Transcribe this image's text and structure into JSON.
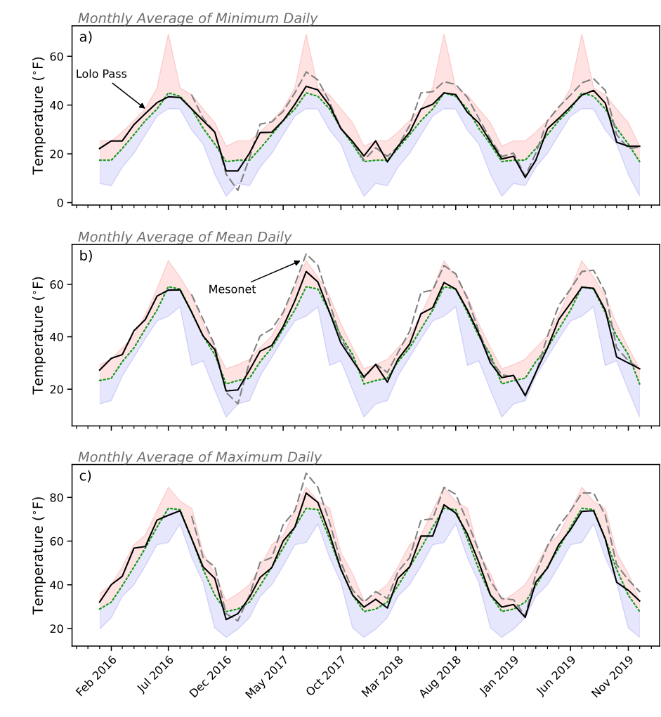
{
  "chart_data": [
    {
      "type": "line",
      "title": "Monthly Average of Minimum Daily",
      "ylabel": "Temperature ($^{∘}$F)",
      "annotations": [
        "a)",
        {
          "text": "Lolo Pass",
          "x": "2016-05",
          "y": 38.5
        }
      ],
      "x": [
        "2016-01",
        "2016-02",
        "2016-03",
        "2016-04",
        "2016-05",
        "2016-06",
        "2016-07",
        "2016-08",
        "2016-09",
        "2016-10",
        "2016-11",
        "2016-12",
        "2017-01",
        "2017-02",
        "2017-03",
        "2017-04",
        "2017-05",
        "2017-06",
        "2017-07",
        "2017-08",
        "2017-09",
        "2017-10",
        "2017-11",
        "2017-12",
        "2018-01",
        "2018-02",
        "2018-03",
        "2018-04",
        "2018-05",
        "2018-06",
        "2018-07",
        "2018-08",
        "2018-09",
        "2018-10",
        "2018-11",
        "2018-12",
        "2019-01",
        "2019-02",
        "2019-03",
        "2019-04",
        "2019-05",
        "2019-06",
        "2019-07",
        "2019-08",
        "2019-09",
        "2019-10",
        "2019-11",
        "2019-12"
      ],
      "xlim": [
        "2015-10-20",
        "2020-01-23"
      ],
      "xticks": [
        {
          "value": "2016-02",
          "label": null
        },
        {
          "value": "2016-07",
          "label": null
        },
        {
          "value": "2016-12",
          "label": null
        },
        {
          "value": "2017-05",
          "label": null
        },
        {
          "value": "2017-10",
          "label": null
        },
        {
          "value": "2018-03",
          "label": null
        },
        {
          "value": "2018-08",
          "label": null
        },
        {
          "value": "2019-01",
          "label": null
        },
        {
          "value": "2019-06",
          "label": null
        },
        {
          "value": "2019-11",
          "label": null
        }
      ],
      "ylim": [
        -1,
        72.5
      ],
      "yticks": [
        0,
        20,
        40,
        60
      ],
      "tick_labels": "y",
      "series": [
        {
          "color": "#1a9a1a",
          "line_style": "dotted",
          "values": [
            17.4,
            17.4,
            22.2,
            27.9,
            33.6,
            38.4,
            45,
            43.6,
            38.4,
            30.5,
            24,
            16.8,
            17.4,
            17.4,
            22.2,
            27.9,
            33.6,
            38.4,
            45,
            43.6,
            38.4,
            30.5,
            24,
            16.8,
            17.4,
            17.4,
            22.2,
            27.9,
            33.6,
            38.4,
            45,
            43.6,
            38.4,
            30.5,
            24,
            16.8,
            17.4,
            17.4,
            22.2,
            27.9,
            33.6,
            38.4,
            45,
            43.6,
            38.4,
            30.5,
            24,
            16.8
          ],
          "upper": [
            25.3,
            25.3,
            28.9,
            33.6,
            38.4,
            47,
            69,
            47,
            44.1,
            38.4,
            32.7,
            23.1,
            25.3,
            25.3,
            28.9,
            33.6,
            38.4,
            47,
            69,
            47,
            44.1,
            38.4,
            32.7,
            23.1,
            25.3,
            25.3,
            28.9,
            33.6,
            38.4,
            47,
            69,
            47,
            44.1,
            38.4,
            32.7,
            23.1,
            25.3,
            25.3,
            28.9,
            33.6,
            38.4,
            47,
            69,
            47,
            44.1,
            38.4,
            32.7,
            23.1
          ],
          "lower": [
            7.9,
            7,
            14.6,
            20.3,
            27.9,
            35.5,
            38.6,
            38.4,
            29.8,
            24.1,
            11.7,
            2.7,
            7.9,
            7,
            14.6,
            20.3,
            27.9,
            35.5,
            38.6,
            38.4,
            29.8,
            24.1,
            11.7,
            2.7,
            7.9,
            7,
            14.6,
            20.3,
            27.9,
            35.5,
            38.6,
            38.4,
            29.8,
            24.1,
            11.7,
            2.7,
            7.9,
            7,
            14.6,
            20.3,
            27.9,
            35.5,
            38.6,
            38.4,
            29.8,
            24.1,
            11.7,
            2.7
          ]
        },
        {
          "color": "#808080",
          "line_style": "dashed",
          "values": [
            null,
            null,
            null,
            null,
            null,
            null,
            null,
            null,
            44.1,
            34.6,
            28.9,
            11.7,
            5,
            18.4,
            32.2,
            33.1,
            37.4,
            45,
            53.6,
            50.3,
            41.2,
            30.3,
            25,
            17.4,
            22.5,
            19,
            23,
            31.7,
            45,
            45.5,
            49.6,
            48.4,
            43.1,
            34.6,
            26,
            18.9,
            20.3,
            10.8,
            20.3,
            33.6,
            39.3,
            44.1,
            49.1,
            50.8,
            46,
            27.9,
            22.2,
            22.7
          ]
        },
        {
          "color": "#000000",
          "line_style": "solid",
          "values": [
            22.2,
            25.3,
            25.3,
            32,
            36.5,
            41,
            43.4,
            43.1,
            38.4,
            33.6,
            28.9,
            13,
            13,
            20.3,
            28.7,
            28.9,
            33.6,
            40.3,
            47.7,
            46.2,
            39.8,
            30.3,
            25,
            19.1,
            25.3,
            16.7,
            23.1,
            28.9,
            38.4,
            40.3,
            45,
            44.3,
            37,
            32.7,
            25,
            17.9,
            19,
            10.3,
            17.4,
            30.3,
            34.6,
            39.3,
            44.1,
            46,
            40.8,
            24.8,
            23.1,
            23.1
          ]
        }
      ]
    },
    {
      "type": "line",
      "title": "Monthly Average of Mean Daily",
      "ylabel": "Temperature ($^{∘}$F)",
      "annotations": [
        "b)",
        {
          "text": "Mesonet",
          "x": "2017-06-16",
          "y": 69
        }
      ],
      "x": [
        "2016-01",
        "2016-02",
        "2016-03",
        "2016-04",
        "2016-05",
        "2016-06",
        "2016-07",
        "2016-08",
        "2016-09",
        "2016-10",
        "2016-11",
        "2016-12",
        "2017-01",
        "2017-02",
        "2017-03",
        "2017-04",
        "2017-05",
        "2017-06",
        "2017-07",
        "2017-08",
        "2017-09",
        "2017-10",
        "2017-11",
        "2017-12",
        "2018-01",
        "2018-02",
        "2018-03",
        "2018-04",
        "2018-05",
        "2018-06",
        "2018-07",
        "2018-08",
        "2018-09",
        "2018-10",
        "2018-11",
        "2018-12",
        "2019-01",
        "2019-02",
        "2019-03",
        "2019-04",
        "2019-05",
        "2019-06",
        "2019-07",
        "2019-08",
        "2019-09",
        "2019-10",
        "2019-11",
        "2019-12"
      ],
      "xlim": [
        "2015-10-20",
        "2020-01-23"
      ],
      "xticks": [
        {
          "value": "2016-02",
          "label": null
        },
        {
          "value": "2016-07",
          "label": null
        },
        {
          "value": "2016-12",
          "label": null
        },
        {
          "value": "2017-05",
          "label": null
        },
        {
          "value": "2017-10",
          "label": null
        },
        {
          "value": "2018-03",
          "label": null
        },
        {
          "value": "2018-08",
          "label": null
        },
        {
          "value": "2019-01",
          "label": null
        },
        {
          "value": "2019-06",
          "label": null
        },
        {
          "value": "2019-11",
          "label": null
        }
      ],
      "ylim": [
        6,
        75.2
      ],
      "yticks": [
        20,
        40,
        60
      ],
      "tick_labels": "y",
      "series": [
        {
          "color": "#1a9a1a",
          "line_style": "dotted",
          "values": [
            23.3,
            24.2,
            30.5,
            35.8,
            43,
            50.2,
            59.1,
            58.2,
            49.3,
            40.3,
            33.2,
            22,
            23.3,
            24.2,
            30.5,
            35.8,
            43,
            50.2,
            59.1,
            58.2,
            49.3,
            40.3,
            33.2,
            22,
            23.3,
            24.2,
            30.5,
            35.8,
            43,
            50.2,
            59.1,
            58.2,
            49.3,
            40.3,
            33.2,
            22,
            23.3,
            24.2,
            30.5,
            35.8,
            43,
            50.2,
            59.1,
            58.2,
            49.3,
            40.3,
            33.2,
            22
          ],
          "upper": [
            29.3,
            31.4,
            35.8,
            40.3,
            48.4,
            58.2,
            69,
            62.7,
            55.5,
            44.8,
            35.8,
            27.8,
            29.3,
            31.4,
            35.8,
            40.3,
            48.4,
            58.2,
            69,
            62.7,
            55.5,
            44.8,
            35.8,
            27.8,
            29.3,
            31.4,
            35.8,
            40.3,
            48.4,
            58.2,
            69,
            62.7,
            55.5,
            44.8,
            35.8,
            27.8,
            29.3,
            31.4,
            35.8,
            40.3,
            48.4,
            58.2,
            69,
            62.7,
            55.5,
            44.8,
            35.8,
            27.8
          ],
          "lower": [
            14.4,
            15.7,
            25.1,
            32.3,
            39.4,
            46.1,
            47.9,
            51.5,
            29.1,
            30.9,
            19.7,
            9.4,
            14.4,
            15.7,
            25.1,
            32.3,
            39.4,
            46.1,
            47.9,
            51.5,
            29.1,
            30.9,
            19.7,
            9.4,
            14.4,
            15.7,
            25.1,
            32.3,
            39.4,
            46.1,
            47.9,
            51.5,
            29.1,
            30.9,
            19.7,
            9.4,
            14.4,
            15.7,
            25.1,
            32.3,
            39.4,
            46.1,
            47.9,
            51.5,
            29.1,
            30.9,
            19.7,
            9.4
          ]
        },
        {
          "color": "#808080",
          "line_style": "dashed",
          "values": [
            null,
            null,
            null,
            null,
            null,
            null,
            null,
            null,
            56,
            46.6,
            36.7,
            18.8,
            14.4,
            30.5,
            40.3,
            43,
            49.3,
            60,
            71.6,
            67.2,
            52.8,
            39.4,
            31.4,
            24.2,
            29.6,
            26.4,
            34,
            42.1,
            56.9,
            57.8,
            67.2,
            64,
            54.6,
            42.1,
            31.4,
            25.5,
            24.7,
            18,
            26,
            40.3,
            52,
            58.2,
            64.9,
            65.4,
            56.9,
            35.8,
            30.9,
            27.8
          ]
        },
        {
          "color": "#000000",
          "line_style": "solid",
          "values": [
            27.3,
            31.8,
            33.2,
            42.3,
            46.6,
            55.5,
            57.8,
            57.9,
            49.3,
            40.3,
            35.1,
            19.3,
            19.7,
            27.3,
            34.5,
            36.7,
            43.9,
            53.7,
            64.9,
            60.9,
            49.3,
            37.6,
            30.9,
            24.7,
            29.4,
            22.7,
            31.4,
            37.2,
            48.8,
            51.1,
            60.7,
            58.2,
            50.2,
            41.2,
            30,
            24.4,
            25.3,
            17.5,
            26.4,
            35.8,
            46.6,
            52.8,
            58.9,
            58.5,
            50.2,
            32.3,
            30,
            27.8
          ]
        }
      ]
    },
    {
      "type": "line",
      "title": "Monthly Average of Maximum Daily",
      "ylabel": "Temperature ($^{∘}$F)",
      "annotations": [
        "c)"
      ],
      "x": [
        "2016-01",
        "2016-02",
        "2016-03",
        "2016-04",
        "2016-05",
        "2016-06",
        "2016-07",
        "2016-08",
        "2016-09",
        "2016-10",
        "2016-11",
        "2016-12",
        "2017-01",
        "2017-02",
        "2017-03",
        "2017-04",
        "2017-05",
        "2017-06",
        "2017-07",
        "2017-08",
        "2017-09",
        "2017-10",
        "2017-11",
        "2017-12",
        "2018-01",
        "2018-02",
        "2018-03",
        "2018-04",
        "2018-05",
        "2018-06",
        "2018-07",
        "2018-08",
        "2018-09",
        "2018-10",
        "2018-11",
        "2018-12",
        "2019-01",
        "2019-02",
        "2019-03",
        "2019-04",
        "2019-05",
        "2019-06",
        "2019-07",
        "2019-08",
        "2019-09",
        "2019-10",
        "2019-11",
        "2019-12"
      ],
      "xlim": [
        "2015-10-20",
        "2020-01-23"
      ],
      "xticks": [
        {
          "value": "2016-02",
          "label": "Feb 2016"
        },
        {
          "value": "2016-07",
          "label": "Jul 2016"
        },
        {
          "value": "2016-12",
          "label": "Dec 2016"
        },
        {
          "value": "2017-05",
          "label": "May 2017"
        },
        {
          "value": "2017-10",
          "label": "Oct 2017"
        },
        {
          "value": "2018-03",
          "label": "Mar 2018"
        },
        {
          "value": "2018-08",
          "label": "Aug 2018"
        },
        {
          "value": "2019-01",
          "label": "Jan 2019"
        },
        {
          "value": "2019-06",
          "label": "Jun 2019"
        },
        {
          "value": "2019-11",
          "label": "Nov 2019"
        }
      ],
      "ylim": [
        12,
        95
      ],
      "yticks": [
        20,
        40,
        60,
        80
      ],
      "series": [
        {
          "color": "#1a9a1a",
          "line_style": "dotted",
          "values": [
            28.9,
            32.1,
            39.6,
            48.2,
            56.8,
            66.4,
            75,
            74.4,
            61,
            47.1,
            35.3,
            27.8,
            28.9,
            32.1,
            39.6,
            48.2,
            56.8,
            66.4,
            75,
            74.4,
            61,
            47.1,
            35.3,
            27.8,
            28.9,
            32.1,
            39.6,
            48.2,
            56.8,
            66.4,
            75,
            74.4,
            61,
            47.1,
            35.3,
            27.8,
            28.9,
            32.1,
            39.6,
            48.2,
            56.8,
            66.4,
            75,
            74.4,
            61,
            47.1,
            35.3,
            27.8
          ],
          "upper": [
            35.9,
            40.1,
            48.2,
            58.3,
            62.7,
            73.9,
            84.6,
            78.2,
            75,
            54.6,
            45,
            32.6,
            35.9,
            40.1,
            48.2,
            58.3,
            62.7,
            73.9,
            84.6,
            78.2,
            75,
            54.6,
            45,
            32.6,
            35.9,
            40.1,
            48.2,
            58.3,
            62.7,
            73.9,
            84.6,
            78.2,
            75,
            54.6,
            45,
            32.6,
            35.9,
            40.1,
            48.2,
            58.3,
            62.7,
            73.9,
            84.6,
            78.2,
            75,
            54.6,
            45,
            32.6
          ],
          "lower": [
            19.8,
            25.1,
            34.8,
            40.1,
            48.7,
            58.4,
            59.4,
            68,
            52.5,
            41.2,
            20.3,
            16,
            19.8,
            25.1,
            34.8,
            40.1,
            48.7,
            58.4,
            59.4,
            68,
            52.5,
            41.2,
            20.3,
            16,
            19.8,
            25.1,
            34.8,
            40.1,
            48.7,
            58.4,
            59.4,
            68,
            52.5,
            41.2,
            20.3,
            16,
            19.8,
            25.1,
            34.8,
            40.1,
            48.7,
            58.4,
            59.4,
            68,
            52.5,
            41.2,
            20.3,
            16
          ]
        },
        {
          "color": "#808080",
          "line_style": "dashed",
          "values": [
            null,
            null,
            null,
            null,
            null,
            null,
            null,
            null,
            71.2,
            52.5,
            48.2,
            26.8,
            23.5,
            35.3,
            50.3,
            52.5,
            67.5,
            73.9,
            91.1,
            84.6,
            68.6,
            50.3,
            37.5,
            32.1,
            36.9,
            33.7,
            46,
            52.5,
            69.6,
            70.2,
            84.6,
            81.4,
            68.6,
            55.7,
            41.8,
            33.7,
            33.2,
            25.7,
            45,
            57.8,
            66.9,
            73.9,
            82,
            82,
            71.8,
            49.3,
            42.3,
            36.9
          ]
        },
        {
          "color": "#000000",
          "line_style": "solid",
          "values": [
            32.1,
            40.1,
            43.9,
            56.8,
            57.5,
            69.6,
            71.8,
            73.9,
            61,
            48.2,
            43,
            24.1,
            26.8,
            34.3,
            43.4,
            47.9,
            60,
            66.4,
            82,
            77.7,
            63.2,
            47.1,
            35.3,
            29.8,
            33.4,
            29.4,
            43,
            48.2,
            62.3,
            62.3,
            76.6,
            72.8,
            63.2,
            50.3,
            35.3,
            29.8,
            31,
            25.1,
            41.2,
            47.7,
            58.4,
            65.3,
            73.6,
            73.9,
            61,
            41.2,
            37.5,
            32.6
          ]
        }
      ]
    }
  ]
}
